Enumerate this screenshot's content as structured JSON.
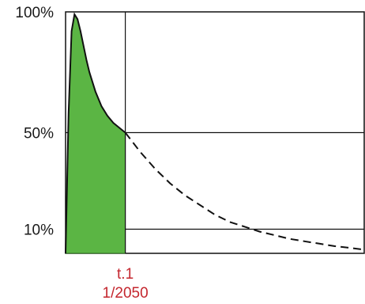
{
  "chart_data": {
    "type": "area",
    "title": "",
    "xlabel": "",
    "ylabel": "",
    "ylim": [
      0,
      100
    ],
    "xlim": [
      0,
      10
    ],
    "grid": false,
    "y_ticks": [
      {
        "value": 100,
        "label": "100%"
      },
      {
        "value": 50,
        "label": "50%"
      },
      {
        "value": 10,
        "label": "10%"
      }
    ],
    "x_marker": {
      "value": 2,
      "label": "t.1",
      "sublabel": "1/2050"
    },
    "series": [
      {
        "style": "solid",
        "x": [
          0,
          0.1,
          0.2,
          0.3,
          0.4,
          0.5,
          0.6,
          0.7,
          0.8,
          1.0,
          1.2,
          1.4,
          1.6,
          1.8,
          2.0
        ],
        "values": [
          0,
          58,
          92,
          99,
          97,
          92,
          86,
          80,
          75,
          67,
          61,
          57,
          54,
          52,
          50
        ]
      },
      {
        "style": "dashed",
        "x": [
          2.0,
          2.5,
          3.0,
          3.5,
          4.0,
          4.5,
          5.0,
          5.5,
          6.0,
          6.5,
          7.0,
          7.5,
          8.0,
          8.5,
          9.0,
          9.5,
          10.0
        ],
        "values": [
          50,
          42,
          35,
          29,
          24,
          20,
          16,
          13,
          11,
          9,
          7.5,
          6,
          5,
          4,
          3,
          2.3,
          1.5
        ]
      }
    ],
    "colors": {
      "fill": "#5bb544",
      "fill_stroke": "#2f6e22",
      "curve": "#111111",
      "x_label": "#c4262e"
    }
  }
}
